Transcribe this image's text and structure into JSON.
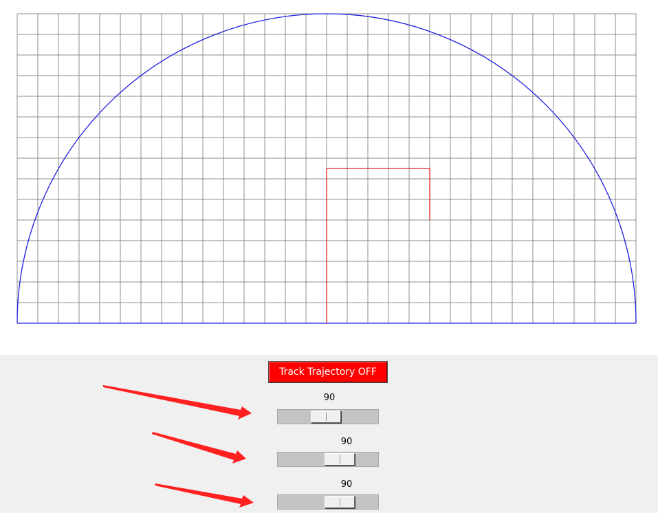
{
  "window": {
    "canvas_background": "#ffffff",
    "panel_background": "#f0f0f0"
  },
  "plot": {
    "grid_color": "#8c8c8c",
    "arc_color": "#1f1fe0",
    "trajectory_color": "#e02020",
    "grid_columns": 30,
    "grid_rows": 15,
    "trajectory": [
      [
        0,
        0
      ],
      [
        0,
        7.5
      ],
      [
        5,
        7.5
      ],
      [
        5,
        5
      ]
    ]
  },
  "controls": {
    "track_button_label": "Track Trajectory OFF",
    "track_button_color": "#ff0000",
    "sliders": [
      {
        "name": "slider-1",
        "value": "90",
        "level": 0.47
      },
      {
        "name": "slider-2",
        "value": "90",
        "level": 0.67
      },
      {
        "name": "slider-3",
        "value": "90",
        "level": 0.67
      }
    ]
  },
  "annotations": {
    "arrow_color": "#ff2020",
    "arrow_count": 3
  }
}
